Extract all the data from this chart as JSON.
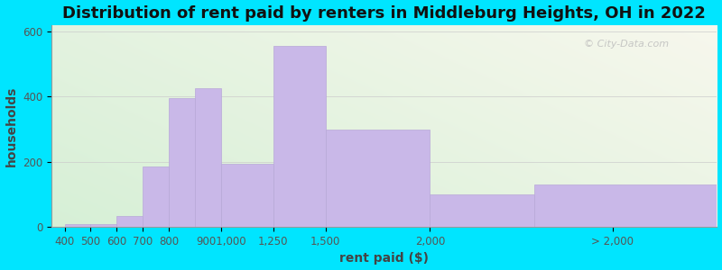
{
  "title": "Distribution of rent paid by renters in Middleburg Heights, OH in 2022",
  "xlabel": "rent paid ($)",
  "ylabel": "households",
  "bar_color": "#c9b8e8",
  "bar_edge_color": "#b8a8d8",
  "background_outer": "#00e5ff",
  "ylim": [
    0,
    620
  ],
  "yticks": [
    0,
    200,
    400,
    600
  ],
  "watermark": "© City-Data.com",
  "title_fontsize": 13,
  "label_fontsize": 10,
  "tick_fontsize": 8.5,
  "bar_left_edges": [
    0,
    1,
    2,
    3,
    4,
    5,
    6,
    8,
    10,
    14,
    18
  ],
  "bar_widths": [
    1,
    1,
    1,
    1,
    1,
    1,
    2,
    2,
    4,
    4,
    7
  ],
  "bar_heights": [
    10,
    10,
    35,
    185,
    395,
    425,
    195,
    555,
    300,
    100,
    130
  ],
  "xtick_positions": [
    0,
    1,
    2,
    3,
    4,
    6,
    8,
    10,
    14,
    21
  ],
  "xtick_labels": [
    "400",
    "500",
    "600",
    "700",
    "800",
    "9001,000",
    "1,250",
    "1,500",
    "2,000",
    "> 2,000"
  ],
  "xlim_left": -0.5,
  "xlim_right": 25
}
